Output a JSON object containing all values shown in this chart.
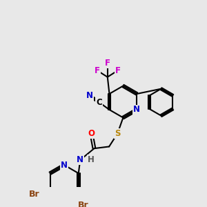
{
  "bg_color": "#e8e8e8",
  "bond_color": "#000000",
  "bond_width": 1.5,
  "atom_colors": {
    "N": "#0000cc",
    "O": "#ff0000",
    "S": "#b8860b",
    "F": "#cc00cc",
    "Br": "#8b4513",
    "C": "#000000",
    "H": "#555555"
  },
  "font_size": 8.5,
  "fig_size": [
    3.0,
    3.0
  ],
  "dpi": 100,
  "xlim": [
    0,
    10
  ],
  "ylim": [
    0,
    10
  ]
}
